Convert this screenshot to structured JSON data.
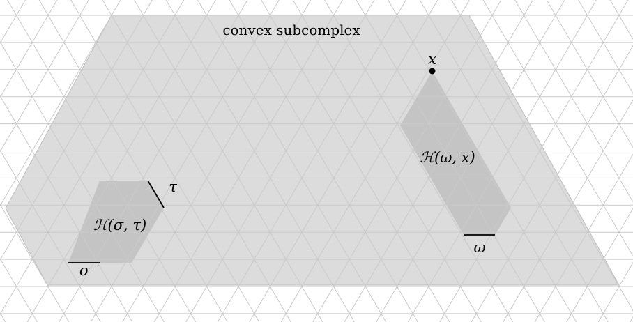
{
  "colors": {
    "grid_line": "#c9c9c9",
    "subcomplex_fill": "#dcdcdc",
    "subcomplex_border": "#bdbdbd",
    "hull_fill": "#c4c4c4",
    "edge": "#000000",
    "text": "#000000"
  },
  "labels": {
    "subcomplex": "convex subcomplex",
    "point_x": "x",
    "hull_sigma_tau": "ℋ(σ, τ)",
    "hull_omega_x": "ℋ(ω, x)",
    "edge_sigma": "σ",
    "edge_tau": "τ",
    "edge_omega": "ω"
  }
}
